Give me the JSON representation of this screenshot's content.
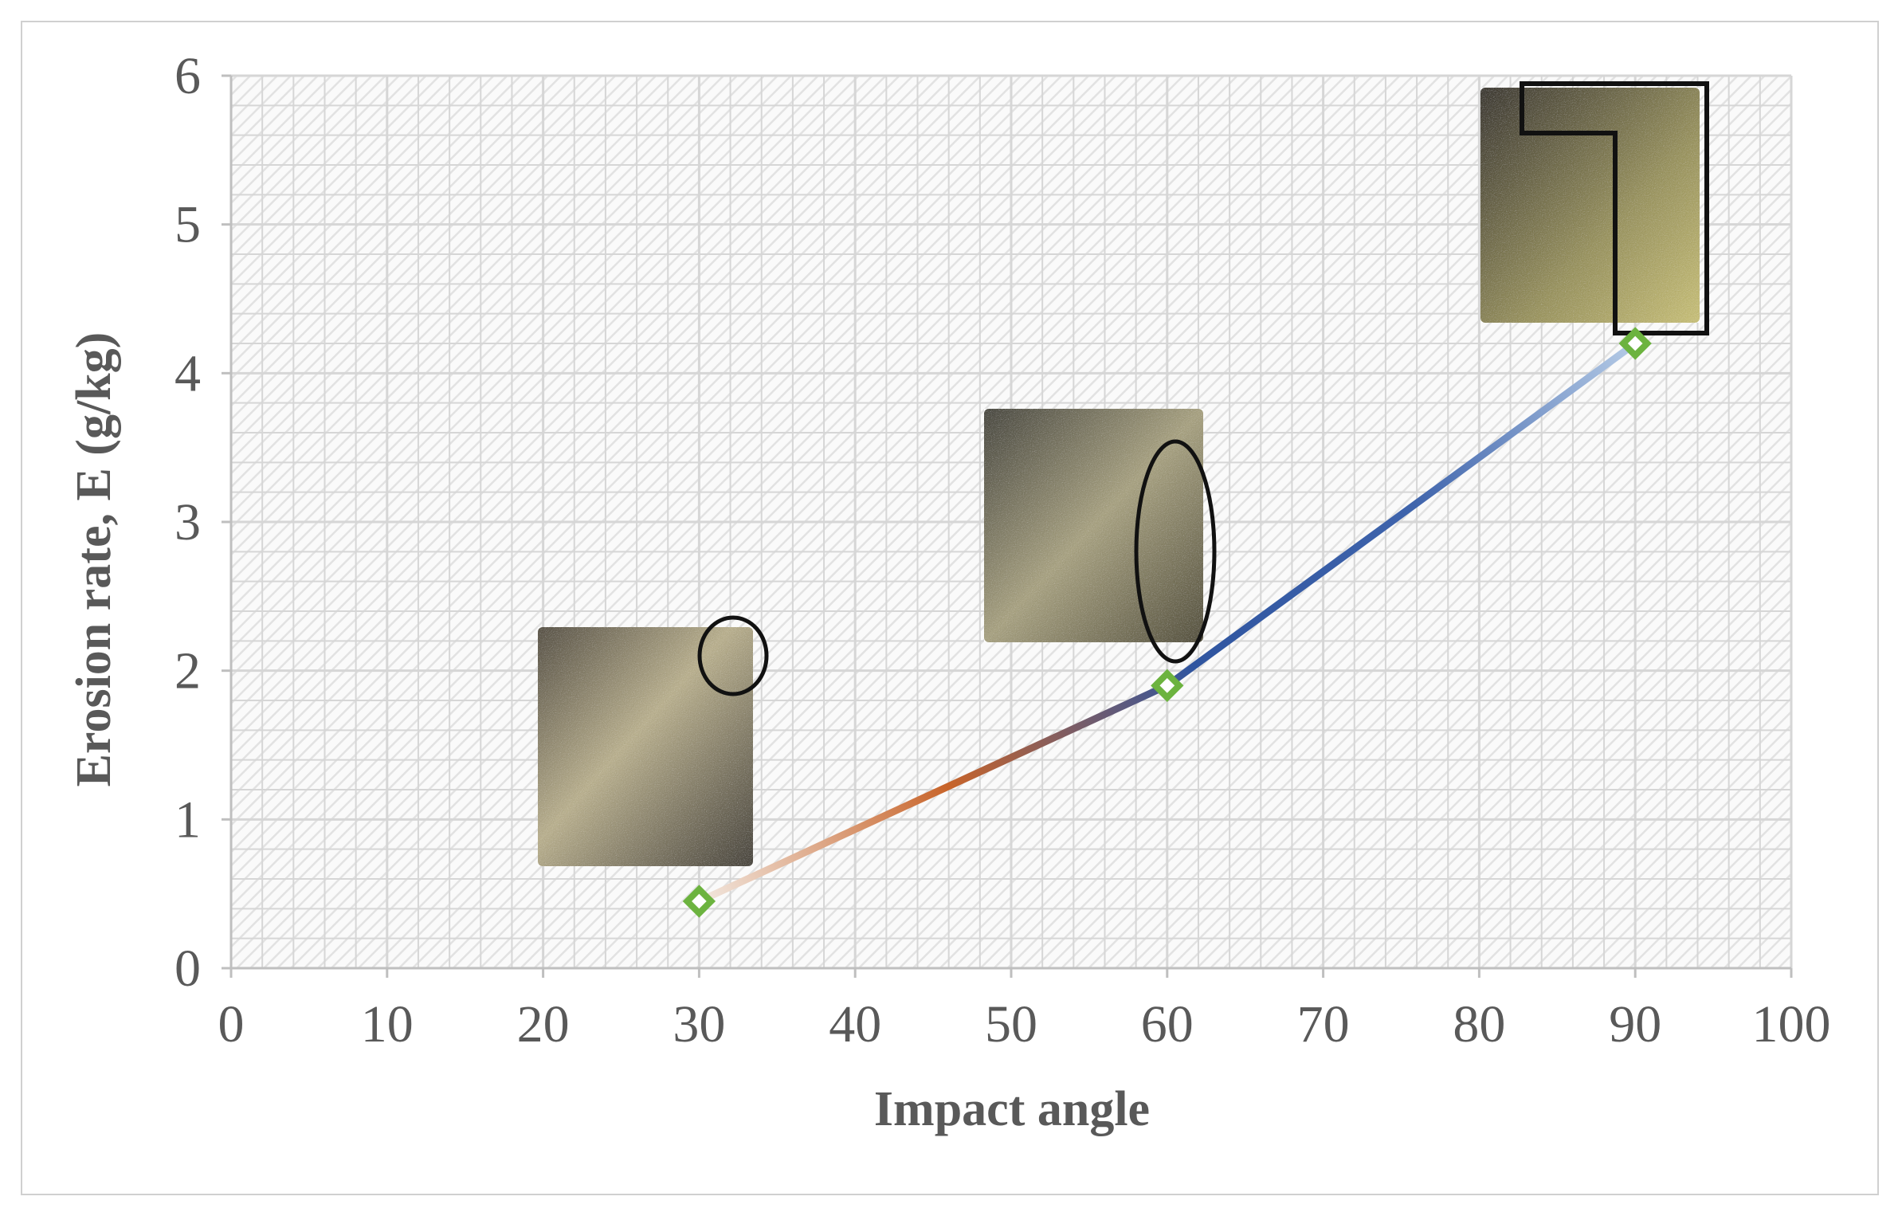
{
  "chart_data": {
    "type": "line",
    "xlabel": "Impact angle",
    "ylabel": "Erosion rate, E  (g/kg)",
    "xlim": [
      0,
      100
    ],
    "ylim": [
      0,
      6
    ],
    "x_ticks": [
      "0",
      "10",
      "20",
      "30",
      "40",
      "50",
      "60",
      "70",
      "80",
      "90",
      "100"
    ],
    "y_ticks": [
      "0",
      "1",
      "2",
      "3",
      "4",
      "5",
      "6"
    ],
    "grid": true,
    "legend": "none",
    "series": [
      {
        "x": [
          30,
          60,
          90
        ],
        "y": [
          0.45,
          1.9,
          4.2
        ],
        "line_gradient": [
          "#f2e8e0",
          "#c8642a",
          "#2f55a0",
          "#3f64ac",
          "#b5cbe6"
        ],
        "marker": "diamond",
        "marker_color": "#6cb33f"
      }
    ],
    "inset_images": [
      {
        "x": 30,
        "description_icon": "eroded-sample-photo",
        "annotation": "circle"
      },
      {
        "x": 60,
        "description_icon": "eroded-sample-photo",
        "annotation": "ellipse"
      },
      {
        "x": 90,
        "description_icon": "eroded-sample-photo",
        "annotation": "rectangle"
      }
    ],
    "colors": {
      "axis_text": "#595959",
      "grid_line": "#d6d6d6",
      "hatch": "#e2e2e2",
      "marker": "#6cb33f"
    }
  }
}
